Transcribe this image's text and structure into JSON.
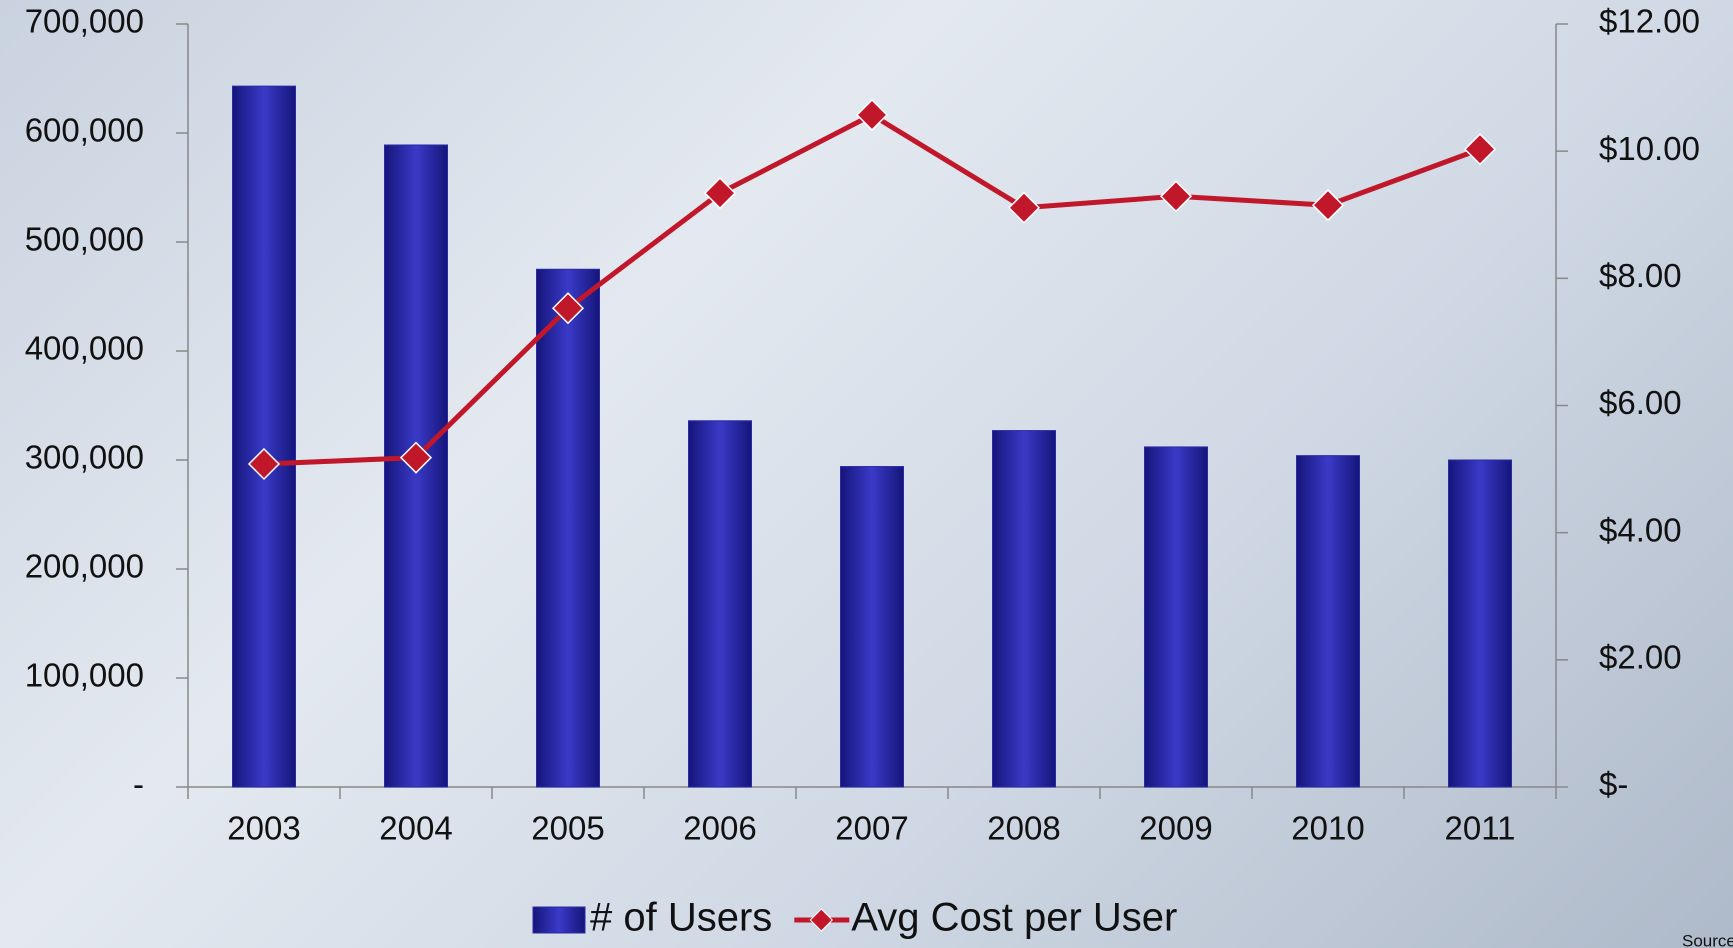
{
  "chart_data": {
    "type": "bar-line",
    "categories": [
      "2003",
      "2004",
      "2005",
      "2006",
      "2007",
      "2008",
      "2009",
      "2010",
      "2011"
    ],
    "series": [
      {
        "name": "# of Users",
        "type": "bar",
        "color": "#2a2aa8",
        "values": [
          643000,
          589000,
          475000,
          336000,
          294000,
          327000,
          312000,
          304000,
          300000
        ]
      },
      {
        "name": "Avg Cost per User",
        "type": "line",
        "axis": "y2",
        "color": "#c0182a",
        "values": [
          5.08,
          5.18,
          7.53,
          9.34,
          10.57,
          9.11,
          9.29,
          9.15,
          10.03
        ]
      }
    ],
    "ylim": [
      0,
      700000
    ],
    "yticks": [
      {
        "value": 0,
        "label": "-"
      },
      {
        "value": 100000,
        "label": "100,000"
      },
      {
        "value": 200000,
        "label": "200,000"
      },
      {
        "value": 300000,
        "label": "300,000"
      },
      {
        "value": 400000,
        "label": "400,000"
      },
      {
        "value": 500000,
        "label": "500,000"
      },
      {
        "value": 600000,
        "label": "600,000"
      },
      {
        "value": 700000,
        "label": "700,000"
      }
    ],
    "y2lim": [
      0,
      12
    ],
    "y2ticks": [
      {
        "value": 0,
        "label": "$-"
      },
      {
        "value": 2,
        "label": "$2.00"
      },
      {
        "value": 4,
        "label": "$4.00"
      },
      {
        "value": 6,
        "label": "$6.00"
      },
      {
        "value": 8,
        "label": "$8.00"
      },
      {
        "value": 10,
        "label": "$10.00"
      },
      {
        "value": 12,
        "label": "$12.00"
      }
    ],
    "source": "Source: City of San Diego"
  }
}
